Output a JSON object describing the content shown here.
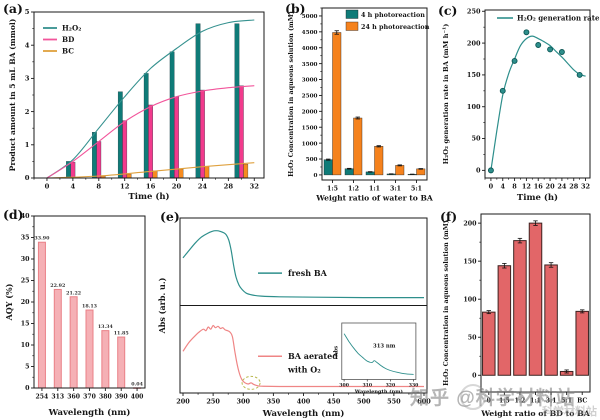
{
  "watermark": {
    "text": "知乎 @科学材料站",
    "sub": "科学材料站"
  },
  "chart_data": [
    {
      "id": "a",
      "tag": "(a)",
      "type": "grouped-bar-line",
      "xlabel": "Time (h)",
      "ylabel": "Product amount in 5 mL BA  (mmol)",
      "xlim": [
        -2,
        33.5
      ],
      "ylim": [
        0,
        5
      ],
      "xticks": [
        0,
        4,
        8,
        12,
        16,
        20,
        24,
        28,
        32
      ],
      "yticks": [
        0,
        1,
        2,
        3,
        4,
        5
      ],
      "categories": [
        4,
        8,
        12,
        16,
        20,
        24,
        30
      ],
      "series": [
        {
          "name": "H₂O₂",
          "bar_color": "#0f7b78",
          "line_color": "#35918f",
          "values": [
            0.5,
            1.38,
            2.6,
            3.15,
            3.8,
            4.65,
            4.65
          ],
          "curve": [
            [
              0,
              0
            ],
            [
              4,
              0.55
            ],
            [
              8,
              1.5
            ],
            [
              12,
              2.45
            ],
            [
              16,
              3.3
            ],
            [
              20,
              3.9
            ],
            [
              24,
              4.42
            ],
            [
              28,
              4.68
            ],
            [
              32,
              4.76
            ]
          ]
        },
        {
          "name": "BD",
          "bar_color": "#f23a8c",
          "line_color": "#f2559b",
          "values": [
            0.48,
            1.1,
            1.73,
            2.2,
            2.45,
            2.65,
            2.78
          ],
          "curve": [
            [
              0,
              0
            ],
            [
              4,
              0.5
            ],
            [
              8,
              1.1
            ],
            [
              12,
              1.7
            ],
            [
              16,
              2.15
            ],
            [
              20,
              2.45
            ],
            [
              24,
              2.62
            ],
            [
              28,
              2.72
            ],
            [
              32,
              2.78
            ]
          ]
        },
        {
          "name": "BC",
          "bar_color": "#f78b1e",
          "line_color": "#dfa13e",
          "values": [
            0.02,
            0.05,
            0.12,
            0.22,
            0.27,
            0.35,
            0.42
          ],
          "curve": [
            [
              0,
              0
            ],
            [
              8,
              0.06
            ],
            [
              16,
              0.2
            ],
            [
              24,
              0.34
            ],
            [
              32,
              0.46
            ]
          ]
        }
      ]
    },
    {
      "id": "b",
      "tag": "(b)",
      "type": "grouped-bar",
      "xlabel": "Weight ratio of water to BA",
      "ylabel": "H₂O₂ Concentration in aqueous solution (mM)",
      "ylim": [
        -160,
        5250
      ],
      "yticks": [
        0,
        500,
        1000,
        1500,
        2000,
        2500,
        3000,
        3500,
        4000,
        4500,
        5000
      ],
      "categories": [
        "1:5",
        "1:2",
        "1:1",
        "3:1",
        "5:1"
      ],
      "series": [
        {
          "name": "4 h photoreaction",
          "color": "#0f7b78",
          "values": [
            480,
            195,
            95,
            30,
            20
          ],
          "errors": [
            18,
            12,
            8,
            5,
            5
          ]
        },
        {
          "name": "24 h photoreaction",
          "color": "#f5821d",
          "values": [
            4480,
            1790,
            900,
            300,
            190
          ],
          "errors": [
            55,
            30,
            20,
            15,
            10
          ]
        }
      ]
    },
    {
      "id": "c",
      "tag": "(c)",
      "type": "line-scatter",
      "xlabel": "Time (h)",
      "ylabel": "H₂O₂ generation rate in BA (mM h⁻¹)",
      "legend": "H₂O₂ generation rate",
      "xlim": [
        -2,
        33.5
      ],
      "ylim": [
        -12,
        252
      ],
      "xticks": [
        0,
        4,
        8,
        12,
        16,
        20,
        24,
        28,
        32
      ],
      "yticks": [
        0,
        50,
        100,
        150,
        200,
        250
      ],
      "marker_color": "#2e8f8c",
      "points": {
        "x": [
          0,
          4,
          8,
          12,
          16,
          20,
          24,
          30
        ],
        "y": [
          0,
          125,
          172,
          217,
          197,
          190,
          186,
          150
        ]
      },
      "curve": [
        [
          0,
          0
        ],
        [
          2,
          62
        ],
        [
          4,
          118
        ],
        [
          6,
          152
        ],
        [
          8,
          175
        ],
        [
          10,
          196
        ],
        [
          12,
          207
        ],
        [
          14,
          211
        ],
        [
          16,
          207
        ],
        [
          18,
          202
        ],
        [
          20,
          196
        ],
        [
          22,
          187
        ],
        [
          24,
          178
        ],
        [
          26,
          168
        ],
        [
          28,
          158
        ],
        [
          30,
          151
        ],
        [
          32,
          148
        ]
      ]
    },
    {
      "id": "d",
      "tag": "(d)",
      "type": "bar-labeled",
      "xlabel": "Wavelength (nm)",
      "ylabel": "AQY (%)",
      "ylim": [
        0,
        40
      ],
      "yticks": [
        0,
        5,
        10,
        15,
        20,
        25,
        30,
        35,
        40
      ],
      "categories": [
        "254",
        "313",
        "360",
        "370",
        "380",
        "390",
        "400"
      ],
      "values": [
        33.9,
        22.92,
        21.22,
        18.13,
        13.34,
        11.85,
        0.04
      ],
      "labels": [
        "33.90",
        "22.92",
        "21.22",
        "18.13",
        "13.34",
        "11.85",
        "0.04"
      ],
      "bar_fill": "#f5b0b5",
      "bar_edge": "#ea8087"
    },
    {
      "id": "e",
      "tag": "(e)",
      "type": "spectra",
      "xlabel": "Wavelength (nm)",
      "ylabel": "Abs (arb. u.)",
      "xlim": [
        195,
        605
      ],
      "xticks": [
        200,
        250,
        300,
        350,
        400,
        450,
        500,
        550,
        600
      ],
      "panels": [
        {
          "legend": "fresh BA",
          "color": "#2e8f8c",
          "curve": [
            [
              200,
              0.58
            ],
            [
              210,
              0.68
            ],
            [
              220,
              0.78
            ],
            [
              230,
              0.86
            ],
            [
              240,
              0.91
            ],
            [
              248,
              0.94
            ],
            [
              255,
              0.95
            ],
            [
              262,
              0.94
            ],
            [
              268,
              0.92
            ],
            [
              272,
              0.89
            ],
            [
              276,
              0.82
            ],
            [
              280,
              0.68
            ],
            [
              284,
              0.48
            ],
            [
              288,
              0.32
            ],
            [
              293,
              0.21
            ],
            [
              298,
              0.15
            ],
            [
              305,
              0.1
            ],
            [
              315,
              0.075
            ],
            [
              330,
              0.06
            ],
            [
              360,
              0.05
            ],
            [
              420,
              0.045
            ],
            [
              500,
              0.04
            ],
            [
              600,
              0.04
            ]
          ]
        },
        {
          "legend": "BA aerated with O₂",
          "legend_lines": [
            "BA aerated",
            "with O₂"
          ],
          "color": "#ef8585",
          "highlight_x": 313,
          "curve": [
            [
              200,
              0.5
            ],
            [
              210,
              0.62
            ],
            [
              220,
              0.71
            ],
            [
              228,
              0.77
            ],
            [
              234,
              0.8
            ],
            [
              238,
              0.78
            ],
            [
              242,
              0.83
            ],
            [
              246,
              0.8
            ],
            [
              250,
              0.85
            ],
            [
              254,
              0.82
            ],
            [
              258,
              0.84
            ],
            [
              262,
              0.81
            ],
            [
              266,
              0.82
            ],
            [
              270,
              0.79
            ],
            [
              274,
              0.78
            ],
            [
              278,
              0.76
            ],
            [
              282,
              0.7
            ],
            [
              286,
              0.5
            ],
            [
              290,
              0.32
            ],
            [
              294,
              0.19
            ],
            [
              298,
              0.11
            ],
            [
              303,
              0.07
            ],
            [
              308,
              0.055
            ],
            [
              313,
              0.07
            ],
            [
              317,
              0.05
            ],
            [
              322,
              0.035
            ],
            [
              330,
              0.025
            ],
            [
              360,
              0.02
            ],
            [
              420,
              0.02
            ],
            [
              500,
              0.02
            ],
            [
              600,
              0.02
            ]
          ]
        }
      ],
      "inset": {
        "xlim": [
          299,
          331
        ],
        "xticks": [
          300,
          310,
          320,
          330
        ],
        "xlabel": "Wavelength (nm)",
        "ylabel": "Abs",
        "annotation": "313 nm",
        "color": "#2e8f8c",
        "curve": [
          [
            300,
            0.92
          ],
          [
            302,
            0.76
          ],
          [
            304,
            0.62
          ],
          [
            306,
            0.5
          ],
          [
            308,
            0.41
          ],
          [
            310,
            0.33
          ],
          [
            312,
            0.3
          ],
          [
            313,
            0.34
          ],
          [
            314,
            0.31
          ],
          [
            316,
            0.23
          ],
          [
            318,
            0.17
          ],
          [
            320,
            0.13
          ],
          [
            323,
            0.09
          ],
          [
            326,
            0.06
          ],
          [
            330,
            0.045
          ]
        ]
      }
    },
    {
      "id": "f",
      "tag": "(f)",
      "type": "bar-error",
      "xlabel": "Weight ratio of BD to BA",
      "ylabel": "H₂O₂ Concentration in aqueous solution (mM)",
      "ylim": [
        -22,
        212
      ],
      "yticks": [
        0,
        50,
        100,
        150,
        200
      ],
      "categories": [
        "0",
        "1:5",
        "1:2",
        "1:1",
        "3:1",
        "5:1",
        "BC"
      ],
      "values": [
        83,
        144,
        177,
        200,
        145,
        5,
        84
      ],
      "errors": [
        2,
        3,
        3,
        3,
        3,
        2,
        2
      ],
      "bar_fill": "#e26668",
      "bar_edge": "#3c2220"
    }
  ]
}
